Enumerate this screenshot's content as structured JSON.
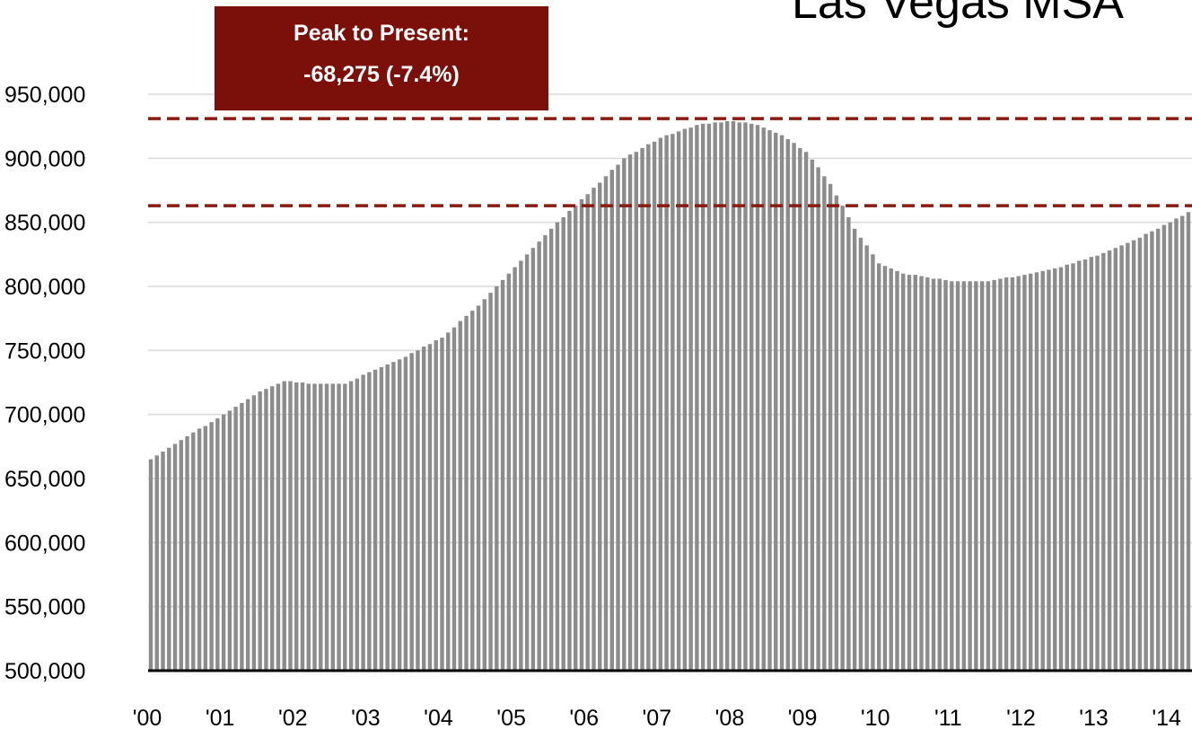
{
  "chart_data": {
    "type": "bar",
    "title": "Las Vegas MSA",
    "annotation": [
      "Peak to Present:",
      "-68,275 (-7.4%)"
    ],
    "color": "#8c8c8c",
    "reference_lines": [
      931000,
      863000
    ],
    "reference_color": "#8b1a10",
    "grid": true,
    "ylim": [
      500000,
      950000
    ],
    "yticks": [
      {
        "value": 500000,
        "label": "500,000"
      },
      {
        "value": 550000,
        "label": "550,000"
      },
      {
        "value": 600000,
        "label": "600,000"
      },
      {
        "value": 650000,
        "label": "650,000"
      },
      {
        "value": 700000,
        "label": "700,000"
      },
      {
        "value": 750000,
        "label": "750,000"
      },
      {
        "value": 800000,
        "label": "800,000"
      },
      {
        "value": 850000,
        "label": "850,000"
      },
      {
        "value": 900000,
        "label": "900,000"
      },
      {
        "value": 950000,
        "label": "950,000"
      }
    ],
    "categories": [
      "'00",
      null,
      null,
      null,
      null,
      null,
      null,
      null,
      null,
      null,
      null,
      null,
      "'01",
      null,
      null,
      null,
      null,
      null,
      null,
      null,
      null,
      null,
      null,
      null,
      "'02",
      null,
      null,
      null,
      null,
      null,
      null,
      null,
      null,
      null,
      null,
      null,
      "'03",
      null,
      null,
      null,
      null,
      null,
      null,
      null,
      null,
      null,
      null,
      null,
      "'04",
      null,
      null,
      null,
      null,
      null,
      null,
      null,
      null,
      null,
      null,
      null,
      "'05",
      null,
      null,
      null,
      null,
      null,
      null,
      null,
      null,
      null,
      null,
      null,
      "'06",
      null,
      null,
      null,
      null,
      null,
      null,
      null,
      null,
      null,
      null,
      null,
      "'07",
      null,
      null,
      null,
      null,
      null,
      null,
      null,
      null,
      null,
      null,
      null,
      "'08",
      null,
      null,
      null,
      null,
      null,
      null,
      null,
      null,
      null,
      null,
      null,
      "'09",
      null,
      null,
      null,
      null,
      null,
      null,
      null,
      null,
      null,
      null,
      null,
      "'10",
      null,
      null,
      null,
      null,
      null,
      null,
      null,
      null,
      null,
      null,
      null,
      "'11",
      null,
      null,
      null,
      null,
      null,
      null,
      null,
      null,
      null,
      null,
      null,
      "'12",
      null,
      null,
      null,
      null,
      null,
      null,
      null,
      null,
      null,
      null,
      null,
      "'13",
      null,
      null,
      null,
      null,
      null,
      null,
      null,
      null,
      null,
      null,
      null,
      "'14",
      null,
      null,
      null
    ],
    "values": [
      665000,
      668000,
      671000,
      674000,
      677000,
      680000,
      683000,
      686000,
      689000,
      691000,
      694000,
      697000,
      700000,
      703000,
      706000,
      709000,
      712000,
      715000,
      718000,
      720000,
      722000,
      724000,
      726000,
      726000,
      725000,
      725000,
      724000,
      724000,
      724000,
      724000,
      724000,
      724000,
      724000,
      726000,
      728000,
      731000,
      733000,
      735000,
      737000,
      739000,
      741000,
      743000,
      745000,
      748000,
      750000,
      753000,
      755000,
      758000,
      760000,
      764000,
      768000,
      773000,
      777000,
      781000,
      785000,
      790000,
      795000,
      800000,
      805000,
      810000,
      815000,
      820000,
      825000,
      830000,
      835000,
      840000,
      845000,
      850000,
      854000,
      859000,
      863000,
      868000,
      872000,
      877000,
      881000,
      886000,
      891000,
      895000,
      900000,
      903000,
      905000,
      908000,
      911000,
      913000,
      916000,
      918000,
      919000,
      921000,
      923000,
      924000,
      926000,
      927000,
      927000,
      928000,
      928000,
      929000,
      929000,
      928000,
      928000,
      927000,
      926000,
      924000,
      922000,
      920000,
      918000,
      915000,
      912000,
      908000,
      905000,
      899000,
      893000,
      886000,
      880000,
      871000,
      863000,
      854000,
      845000,
      838000,
      832000,
      825000,
      818000,
      816000,
      814000,
      812000,
      810000,
      809000,
      809000,
      808000,
      807000,
      806000,
      806000,
      805000,
      804000,
      804000,
      804000,
      804000,
      804000,
      804000,
      804000,
      805000,
      806000,
      807000,
      807000,
      808000,
      809000,
      810000,
      811000,
      812000,
      813000,
      814000,
      815000,
      817000,
      818000,
      820000,
      821000,
      823000,
      824000,
      826000,
      828000,
      830000,
      832000,
      834000,
      836000,
      838000,
      841000,
      843000,
      845000,
      848000,
      850000,
      853000,
      855000,
      858000
    ]
  }
}
